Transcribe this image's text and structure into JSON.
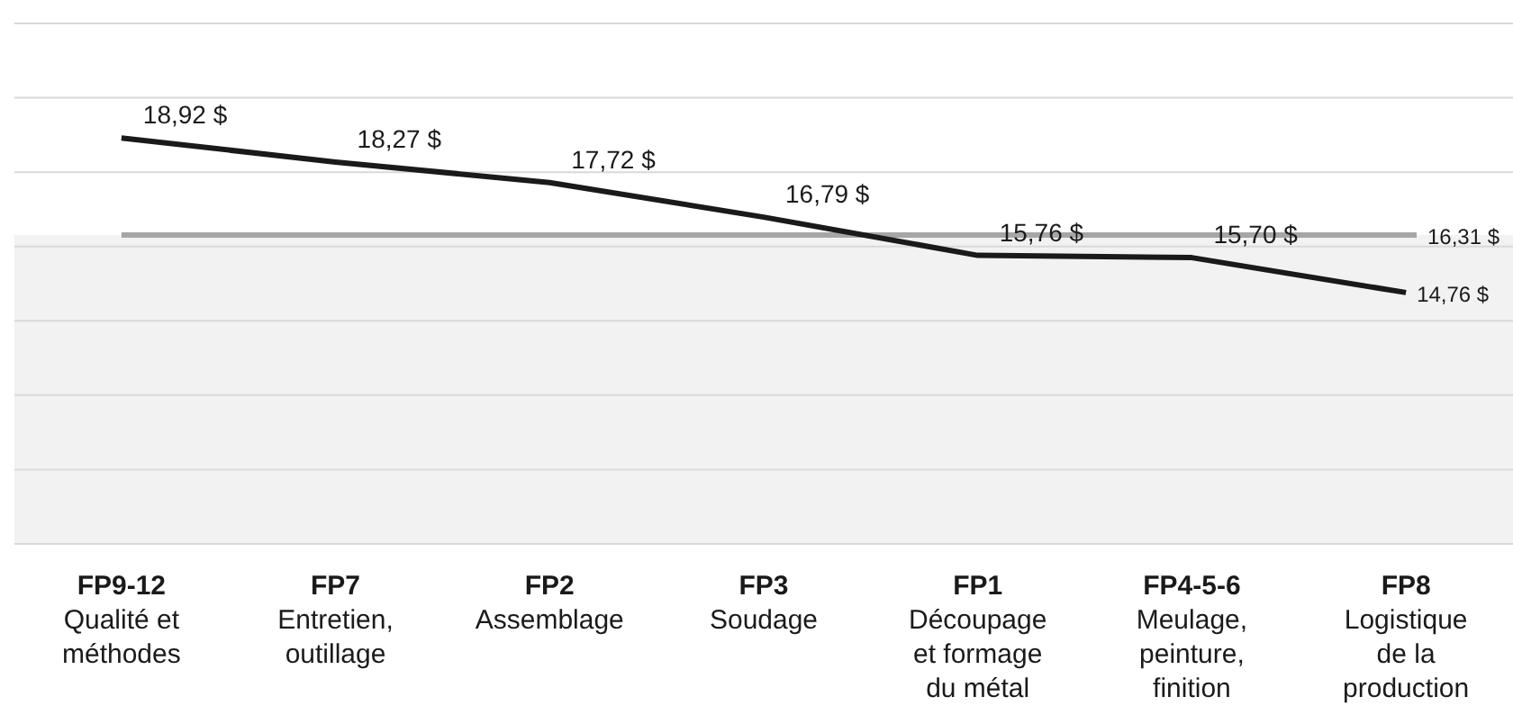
{
  "chart_data": {
    "type": "line",
    "categories": [
      "FP9-12\nQualité et\nméthodes",
      "FP7\nEntretien,\noutillage",
      "FP2\nAssemblage",
      "FP3\nSoudage",
      "FP1\nDécoupage\net formage\ndu métal",
      "FP4-5-6\nMeulage,\npeinture,\nfinition",
      "FP8\nLogistique\nde la\nproduction"
    ],
    "series": [
      {
        "color": "#1a1a1a",
        "values": [
          18.92,
          18.27,
          17.72,
          16.79,
          15.76,
          15.7,
          14.76
        ],
        "value_labels": [
          "18,92 $",
          "18,27 $",
          "17,72 $",
          "16,79 $",
          "15,76 $",
          "15,70 $",
          "14,76 $"
        ]
      }
    ],
    "ylim": [
      8,
      22
    ],
    "yticks": [
      {
        "value": 8,
        "label": null
      },
      {
        "value": 10,
        "label": null
      },
      {
        "value": 12,
        "label": null
      },
      {
        "value": 14,
        "label": null
      },
      {
        "value": 16,
        "label": null
      },
      {
        "value": 18,
        "label": null
      },
      {
        "value": 20,
        "label": null
      },
      {
        "value": 22,
        "label": null
      }
    ],
    "tick_labels": "x",
    "grid": "y",
    "legend": false,
    "marker": "none",
    "line_style": "solid",
    "ref_lines": [
      {
        "axis": "y",
        "value": 16.31,
        "label": "16,31 $",
        "color": "#a6a6a6"
      }
    ],
    "bands": [
      {
        "axis": "y",
        "from": 8,
        "to": 16.31,
        "color": "#f2f2f2"
      }
    ]
  }
}
